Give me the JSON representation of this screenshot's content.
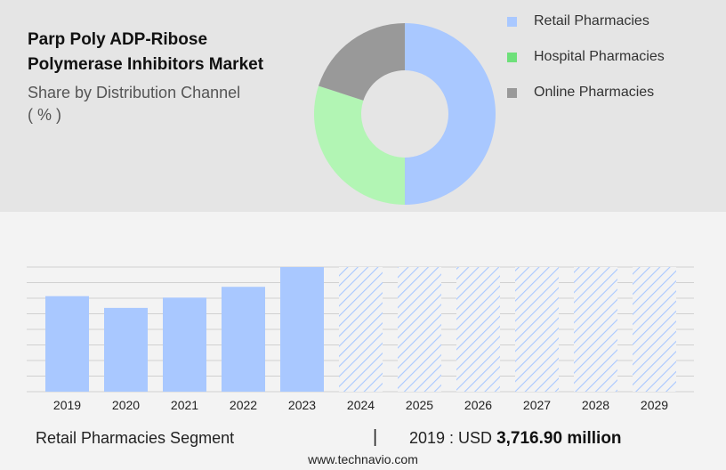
{
  "header": {
    "title_line1": "Parp Poly ADP-Ribose",
    "title_line2": "Polymerase Inhibitors Market",
    "subtitle_line1": "Share by Distribution Channel",
    "subtitle_line2": "( % )"
  },
  "colors": {
    "retail": "#a9c8ff",
    "hospital": "#b2f5b4",
    "online": "#999999",
    "legend_hospital": "#6ee07a",
    "hatch": "#a9c8ff"
  },
  "legend": [
    {
      "label": "Retail Pharmacies",
      "color": "#a9c8ff"
    },
    {
      "label": "Hospital Pharmacies",
      "color": "#6ee07a"
    },
    {
      "label": "Online Pharmacies",
      "color": "#999999"
    }
  ],
  "footer": {
    "segment_label": "Retail Pharmacies Segment",
    "separator": "|",
    "value_prefix": "2019 : USD",
    "value_bold": "3,716.90 million"
  },
  "source": "www.technavio.com",
  "chart_data": [
    {
      "type": "pie",
      "style": "donut",
      "categories": [
        "Retail Pharmacies",
        "Hospital Pharmacies",
        "Online Pharmacies"
      ],
      "values": [
        50,
        30,
        20
      ]
    },
    {
      "type": "bar",
      "categories": [
        "2019",
        "2020",
        "2021",
        "2022",
        "2023",
        "2024",
        "2025",
        "2026",
        "2027",
        "2028",
        "2029"
      ],
      "values": [
        3716.9,
        3260,
        3660,
        4080,
        4850,
        4850,
        4850,
        4850,
        4850,
        4850,
        4850
      ],
      "forecast_from": "2024",
      "ylim": [
        0,
        4850
      ],
      "grid": true
    }
  ]
}
